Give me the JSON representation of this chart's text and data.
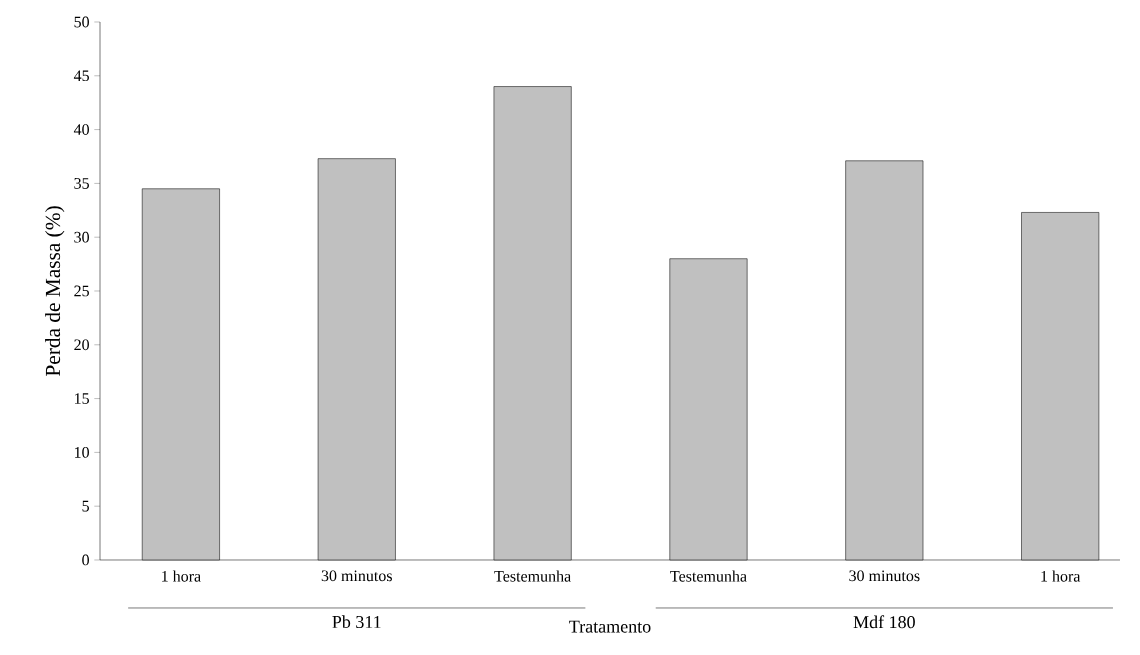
{
  "chart_data": {
    "type": "bar",
    "xlabel": "Tratamento",
    "ylabel": "Perda de Massa (%)",
    "categories": [
      "1 hora",
      "30 minutos",
      "Testemunha",
      "Testemunha",
      "30 minutos",
      "1 hora"
    ],
    "values": [
      34.5,
      37.3,
      44,
      28,
      37.1,
      32.3
    ],
    "color": "#c0c0c0",
    "ylim": [
      0,
      50
    ],
    "yticks": [
      0,
      5,
      10,
      15,
      20,
      25,
      30,
      35,
      40,
      45,
      50
    ],
    "grid": false,
    "annotations": [
      "Pb 311",
      "Mdf 180"
    ]
  }
}
